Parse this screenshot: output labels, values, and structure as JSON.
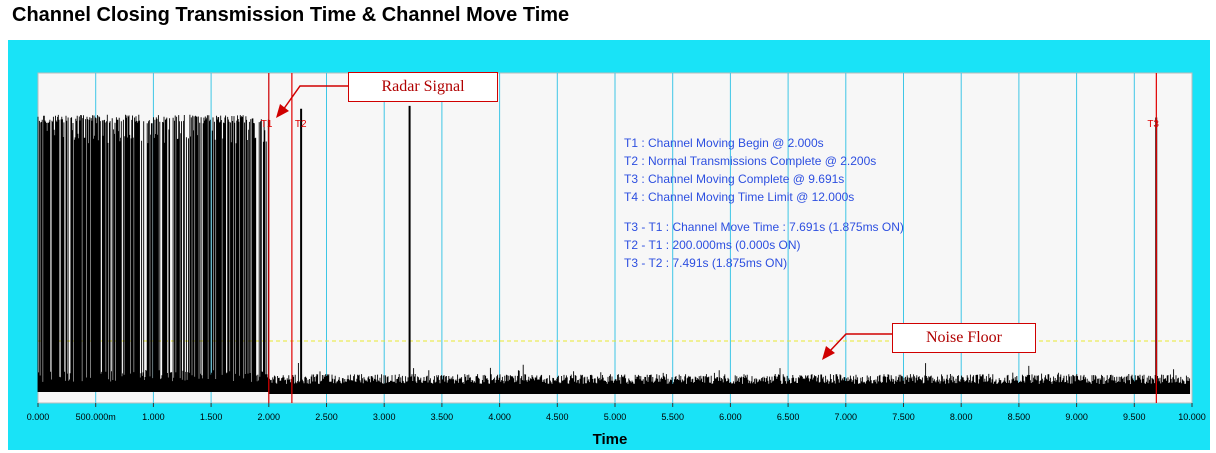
{
  "chart_data": {
    "type": "line",
    "title": "Channel Closing Transmission Time & Channel Move Time",
    "xlabel": "Time",
    "ylabel": "",
    "xlim": [
      0,
      10
    ],
    "x_ticks": [
      {
        "v": 0,
        "label": "0.000"
      },
      {
        "v": 0.5,
        "label": "500.000m"
      },
      {
        "v": 1,
        "label": "1.000"
      },
      {
        "v": 1.5,
        "label": "1.500"
      },
      {
        "v": 2,
        "label": "2.000"
      },
      {
        "v": 2.5,
        "label": "2.500"
      },
      {
        "v": 3,
        "label": "3.000"
      },
      {
        "v": 3.5,
        "label": "3.500"
      },
      {
        "v": 4,
        "label": "4.000"
      },
      {
        "v": 4.5,
        "label": "4.500"
      },
      {
        "v": 5,
        "label": "5.000"
      },
      {
        "v": 5.5,
        "label": "5.500"
      },
      {
        "v": 6,
        "label": "6.000"
      },
      {
        "v": 6.5,
        "label": "6.500"
      },
      {
        "v": 7,
        "label": "7.000"
      },
      {
        "v": 7.5,
        "label": "7.500"
      },
      {
        "v": 8,
        "label": "8.000"
      },
      {
        "v": 8.5,
        "label": "8.500"
      },
      {
        "v": 9,
        "label": "9.000"
      },
      {
        "v": 9.5,
        "label": "9.500"
      },
      {
        "v": 10,
        "label": "10.000"
      }
    ],
    "grid": true,
    "markers": [
      {
        "label": "T1",
        "x": 2.0
      },
      {
        "label": "T2",
        "x": 2.2
      },
      {
        "label": "T3",
        "x": 9.691
      }
    ],
    "noise_floor": 0.25,
    "burst_region": {
      "start": 0.0,
      "end": 2.0,
      "level": 0.95
    },
    "isolated_spikes": [
      {
        "x": 2.28,
        "level": 0.97
      },
      {
        "x": 3.22,
        "level": 0.98
      },
      {
        "x": 9.69,
        "level": 0.94
      }
    ],
    "annotations": [
      "T1 : Channel Moving Begin @ 2.000s",
      "T2 : Normal Transmissions Complete @ 2.200s",
      "T3 : Channel Moving Complete @ 9.691s",
      "T4 : Channel Moving Time Limit @ 12.000s",
      "",
      "T3 - T1 : Channel Move Time : 7.691s (1.875ms ON)",
      "T2 - T1 : 200.000ms (0.000s ON)",
      "T3 - T2 : 7.491s (1.875ms ON)"
    ],
    "callouts": {
      "radar": "Radar Signal",
      "noise": "Noise Floor"
    }
  },
  "colors": {
    "frame": "#19e3f7",
    "plot_bg": "#f7f7f7",
    "grid": "#3ec6e6",
    "signal": "#000000",
    "marker": "#e00000",
    "noise_line": "#e8e830",
    "annotation_text": "#2d4fe0"
  }
}
